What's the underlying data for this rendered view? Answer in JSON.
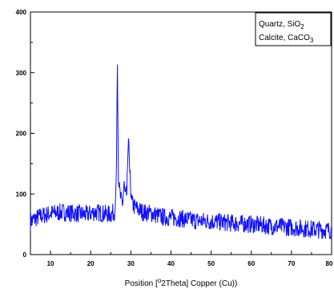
{
  "chart_data": {
    "type": "line",
    "title": "",
    "xlabel": {
      "prefix": "Position [",
      "superscript": "o",
      "suffix": "2Theta] Copper (Cu))"
    },
    "ylabel": "",
    "xlim": [
      5,
      80
    ],
    "ylim": [
      0,
      400
    ],
    "x_ticks": [
      10,
      20,
      30,
      40,
      50,
      60,
      70,
      80
    ],
    "y_ticks": [
      0,
      100,
      200,
      300,
      400
    ],
    "grid": false,
    "legend": {
      "placement": "top-right",
      "entries": [
        {
          "name": "Quartz, SiO",
          "subscript": "2"
        },
        {
          "name": "Calcite, CaCO",
          "subscript": "3"
        }
      ]
    },
    "series_color": "#1010ff",
    "noise_seed": 7,
    "series": [
      {
        "name": "",
        "x": [
          5,
          7,
          10,
          13,
          16,
          19,
          21,
          23,
          25,
          26,
          26.4,
          26.65,
          26.9,
          27.5,
          28,
          28.3,
          28.6,
          29,
          29.2,
          29.45,
          29.7,
          30.2,
          31,
          33,
          35,
          38,
          42,
          46,
          50,
          55,
          60,
          65,
          70,
          75,
          80
        ],
        "y": [
          55,
          62,
          68,
          70,
          68,
          66,
          70,
          68,
          66,
          72,
          130,
          327,
          120,
          90,
          85,
          117,
          95,
          100,
          150,
          198,
          140,
          85,
          78,
          70,
          68,
          62,
          60,
          56,
          55,
          52,
          50,
          47,
          45,
          42,
          40
        ]
      }
    ]
  }
}
